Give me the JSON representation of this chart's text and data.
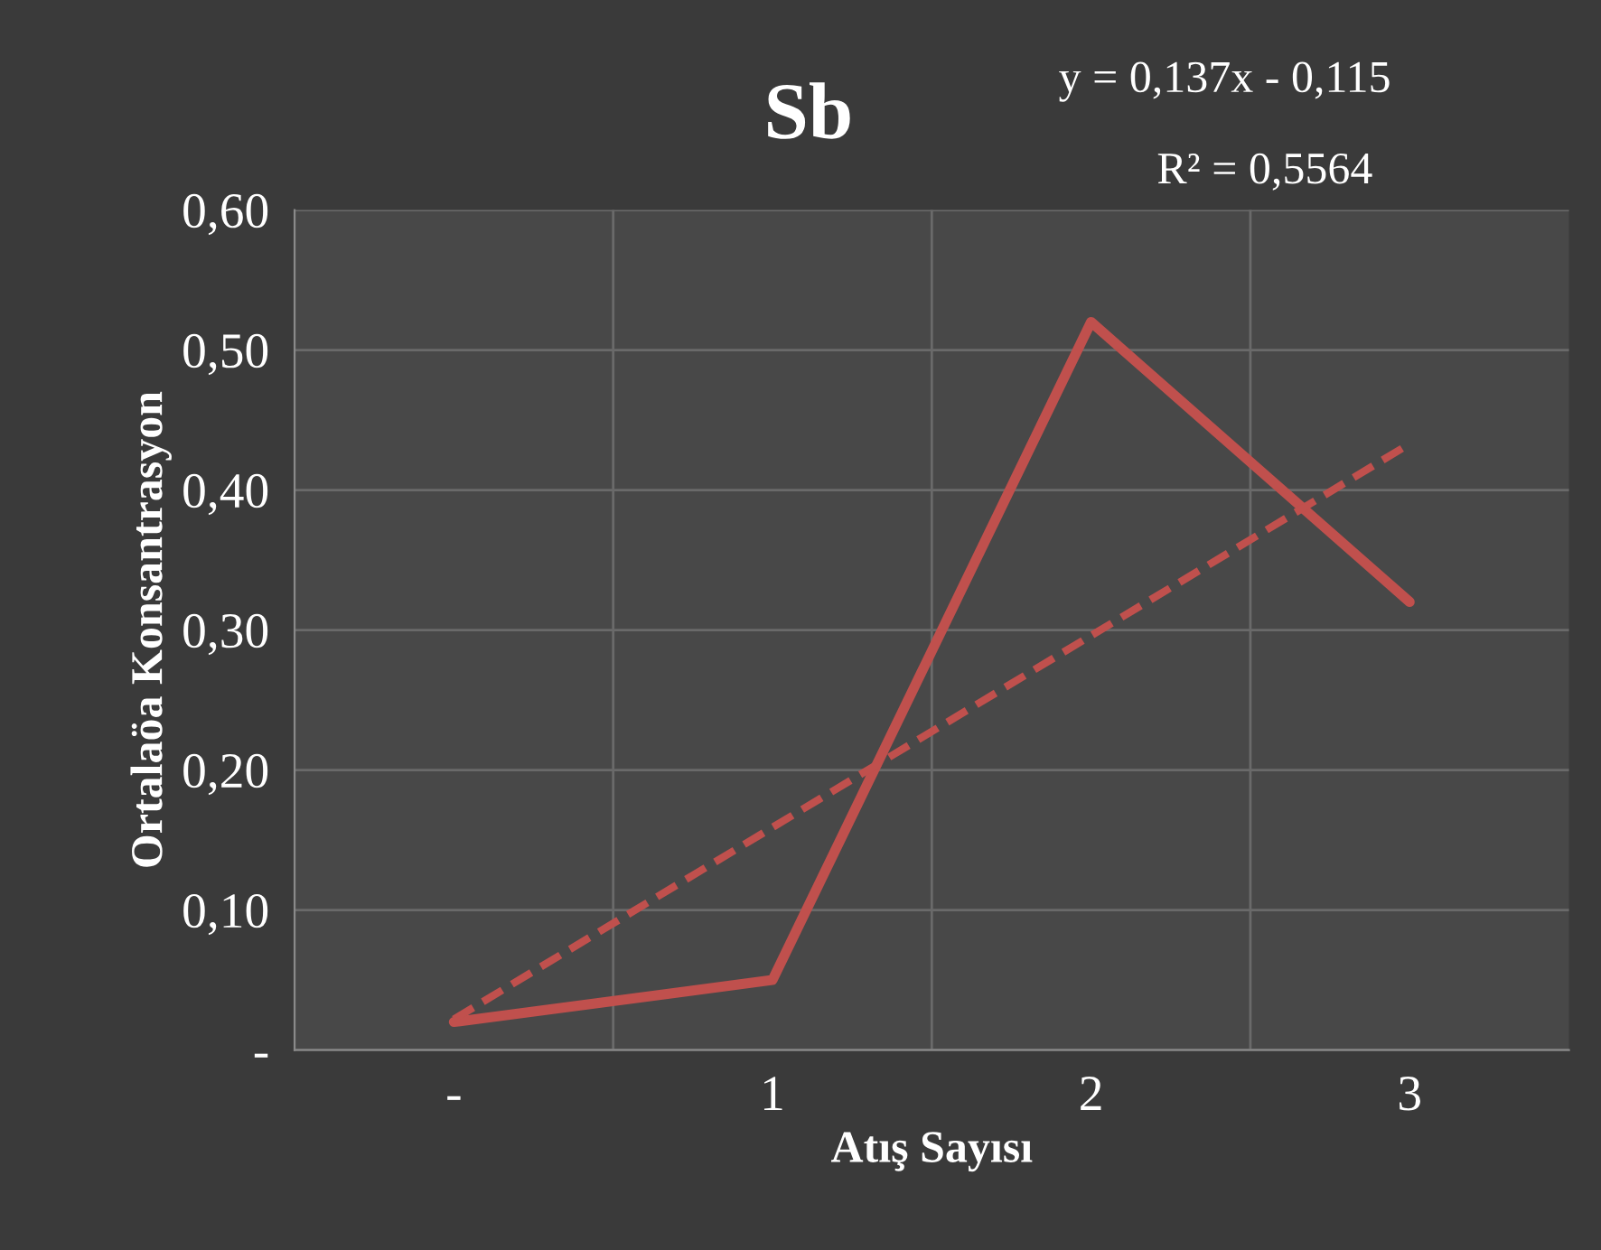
{
  "chart_data": {
    "type": "line",
    "title": "Sb",
    "xlabel": "Atış Sayısı",
    "ylabel": "Ortalaöa Konsantrasyon",
    "annotations": [
      "y = 0,137x - 0,115",
      "R² = 0,5564"
    ],
    "categories": [
      "-",
      "1",
      "2",
      "3"
    ],
    "series": [
      {
        "color": "#c0504d",
        "values": [
          0.02,
          0.05,
          0.52,
          0.32
        ],
        "line_style": "solid"
      },
      {
        "color": "#c0504d",
        "values": [
          0.022,
          0.159,
          0.296,
          0.433
        ],
        "line_style": "dashed"
      }
    ],
    "ylim": [
      0,
      0.6
    ],
    "yticks": [
      {
        "value": 0,
        "label": "-"
      },
      {
        "value": 0.1,
        "label": "0,10"
      },
      {
        "value": 0.2,
        "label": "0,20"
      },
      {
        "value": 0.3,
        "label": "0,30"
      },
      {
        "value": 0.4,
        "label": "0,40"
      },
      {
        "value": 0.5,
        "label": "0,50"
      },
      {
        "value": 0.6,
        "label": "0,60"
      }
    ],
    "grid": true,
    "marker": "none"
  }
}
